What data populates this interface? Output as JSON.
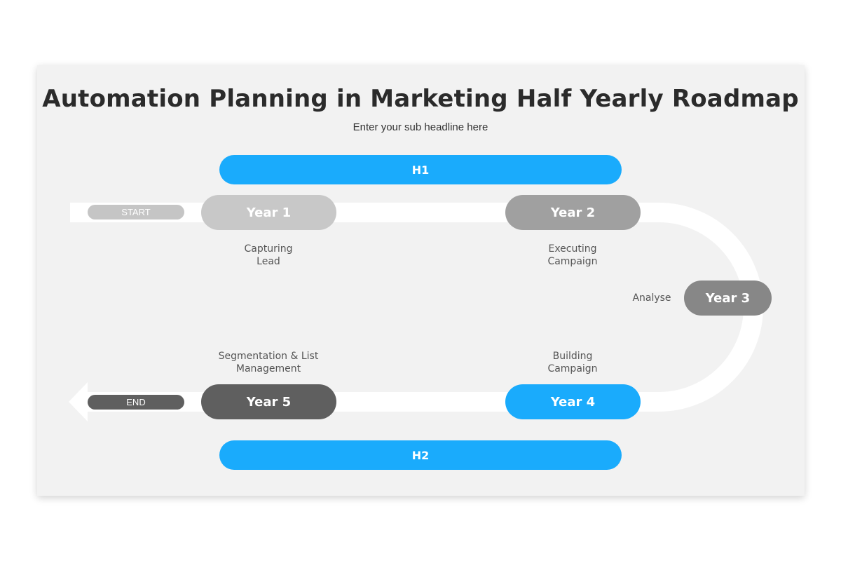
{
  "title": "Automation Planning in Marketing Half Yearly Roadmap",
  "subtitle": "Enter your sub headline here",
  "halves": {
    "h1": "H1",
    "h2": "H2"
  },
  "start": "START",
  "end": "END",
  "milestones": [
    {
      "label": "Year 1",
      "desc_1": "Capturing",
      "desc_2": "Lead",
      "color": "#c8c8c8"
    },
    {
      "label": "Year 2",
      "desc_1": "Executing",
      "desc_2": "Campaign",
      "color": "#a0a0a0"
    },
    {
      "label": "Year 3",
      "desc_1": "Analyse",
      "color": "#878787"
    },
    {
      "label": "Year 4",
      "desc_1": "Building",
      "desc_2": "Campaign",
      "color": "#1aabfc"
    },
    {
      "label": "Year 5",
      "desc_1": "Segmentation & List",
      "desc_2": "Management",
      "color": "#5f5f5f"
    }
  ],
  "colors": {
    "accent": "#1aabfc",
    "background": "#f2f2f2",
    "track": "#ffffff"
  }
}
